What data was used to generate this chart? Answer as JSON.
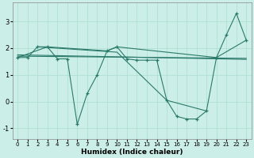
{
  "xlabel": "Humidex (Indice chaleur)",
  "bg_color": "#cceee8",
  "grid_color": "#aaddcc",
  "line_color": "#2a7a6a",
  "xlim": [
    -0.5,
    23.5
  ],
  "ylim": [
    -1.4,
    3.7
  ],
  "xticks": [
    0,
    1,
    2,
    3,
    4,
    5,
    6,
    7,
    8,
    9,
    10,
    11,
    12,
    13,
    14,
    15,
    16,
    17,
    18,
    19,
    20,
    21,
    22,
    23
  ],
  "yticks": [
    -1,
    0,
    1,
    2,
    3
  ],
  "series_main_x": [
    0,
    1,
    2,
    3,
    4,
    5,
    6,
    7,
    8,
    9,
    10,
    11,
    12,
    13,
    14,
    15,
    16,
    17,
    18,
    19,
    20,
    21,
    22,
    23
  ],
  "series_main_y": [
    1.65,
    1.65,
    2.05,
    2.05,
    1.6,
    1.6,
    -0.85,
    0.3,
    1.0,
    1.9,
    2.05,
    1.6,
    1.55,
    1.55,
    1.55,
    0.05,
    -0.55,
    -0.65,
    -0.65,
    -0.35,
    1.65,
    2.5,
    3.3,
    2.3
  ],
  "series_trend1_x": [
    0,
    3,
    9,
    10,
    20,
    23
  ],
  "series_trend1_y": [
    1.65,
    2.05,
    1.9,
    2.05,
    1.65,
    2.3
  ],
  "series_trend2_x": [
    0,
    23
  ],
  "series_trend2_y": [
    1.7,
    1.62
  ],
  "series_trend3_x": [
    0,
    23
  ],
  "series_trend3_y": [
    1.75,
    1.58
  ],
  "series_decline_x": [
    2,
    10,
    15,
    19
  ],
  "series_decline_y": [
    2.05,
    1.85,
    0.05,
    -0.35
  ]
}
